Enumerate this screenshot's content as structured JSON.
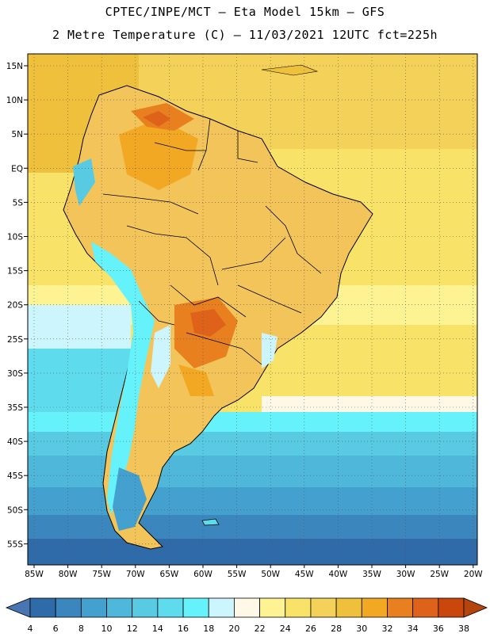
{
  "header": {
    "line1": "CPTEC/INPE/MCT –  Eta Model 15km – GFS",
    "line2": "2 Metre Temperature (C) – 11/03/2021 12UTC fct=225h"
  },
  "map": {
    "lat_labels": [
      "15N",
      "10N",
      "5N",
      "EQ",
      "5S",
      "10S",
      "15S",
      "20S",
      "25S",
      "30S",
      "35S",
      "40S",
      "45S",
      "50S",
      "55S"
    ],
    "lon_labels": [
      "85W",
      "80W",
      "75W",
      "70W",
      "65W",
      "60W",
      "55W",
      "50W",
      "45W",
      "40W",
      "35W",
      "30W",
      "25W",
      "20W"
    ]
  },
  "legend": {
    "values": [
      "4",
      "6",
      "8",
      "10",
      "12",
      "14",
      "16",
      "18",
      "20",
      "22",
      "24",
      "26",
      "28",
      "30",
      "32",
      "34",
      "36",
      "38"
    ],
    "colors": [
      "#2f6aa9",
      "#3a86bd",
      "#44a0cf",
      "#4fb8da",
      "#58cbe3",
      "#5edbec",
      "#66f2fb",
      "#cdf5fd",
      "#fff8e6",
      "#fdf392",
      "#f9e268",
      "#f4d158",
      "#efc03c",
      "#f2a823",
      "#e8801f",
      "#df621a",
      "#c9460c"
    ],
    "left_arrow_color": "#4a75b3",
    "right_arrow_color": "#b4450c"
  }
}
